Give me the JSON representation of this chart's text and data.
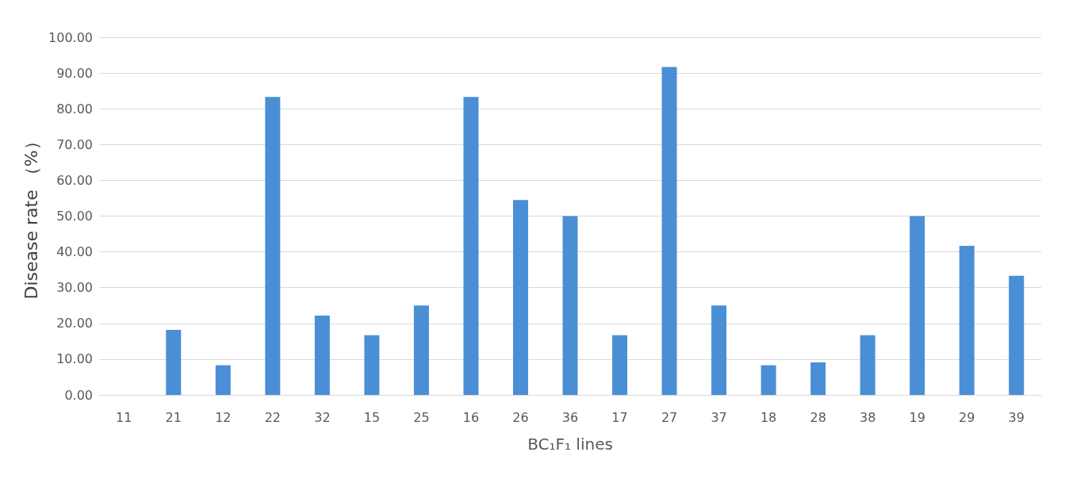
{
  "chart_data": {
    "type": "bar",
    "xlabel": "BC₁F₁ lines",
    "ylabel": "Disease rate （%）",
    "categories": [
      "11",
      "21",
      "12",
      "22",
      "32",
      "15",
      "25",
      "16",
      "26",
      "36",
      "17",
      "27",
      "37",
      "18",
      "28",
      "38",
      "19",
      "29",
      "39"
    ],
    "values": [
      0,
      18.2,
      8.3,
      83.3,
      22.2,
      16.7,
      25,
      83.3,
      54.5,
      50,
      16.7,
      91.7,
      25,
      8.3,
      9.1,
      16.7,
      50,
      41.7,
      33.3
    ],
    "color": "#4a8fd6",
    "ylim": [
      0,
      100
    ],
    "yticks": [
      {
        "value": 0,
        "label": "0.00"
      },
      {
        "value": 10,
        "label": "10.00"
      },
      {
        "value": 20,
        "label": "20.00"
      },
      {
        "value": 30,
        "label": "30.00"
      },
      {
        "value": 40,
        "label": "40.00"
      },
      {
        "value": 50,
        "label": "50.00"
      },
      {
        "value": 60,
        "label": "60.00"
      },
      {
        "value": 70,
        "label": "70.00"
      },
      {
        "value": 80,
        "label": "80.00"
      },
      {
        "value": 90,
        "label": "90.00"
      },
      {
        "value": 100,
        "label": "100.00"
      }
    ],
    "grid": "y"
  }
}
